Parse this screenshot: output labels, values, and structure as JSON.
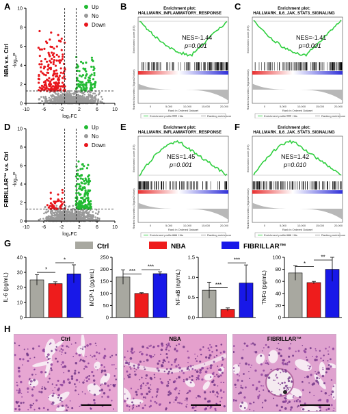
{
  "panels": {
    "A": {
      "label": "A",
      "ylabel_title": "NBA v.s. Ctrl"
    },
    "B": {
      "label": "B"
    },
    "C": {
      "label": "C"
    },
    "D": {
      "label": "D",
      "ylabel_title": "FIBRILLAR™ v.s. Ctrl"
    },
    "E": {
      "label": "E"
    },
    "F": {
      "label": "F"
    },
    "G": {
      "label": "G"
    },
    "H": {
      "label": "H"
    }
  },
  "volcano": {
    "xlabel": "log₂FC",
    "ylabel": "-log₁₀P",
    "xticks": [
      "-10",
      "-6",
      "-2",
      "2",
      "6",
      "10"
    ],
    "yticksA": [
      "0",
      "2",
      "4",
      "6",
      "8",
      "10"
    ],
    "yticksD": [
      "0",
      "2",
      "4",
      "6",
      "8",
      "10"
    ],
    "legend": [
      {
        "label": "Up",
        "color": "#22bb33"
      },
      {
        "label": "No",
        "color": "#999999"
      },
      {
        "label": "Down",
        "color": "#e8161c"
      }
    ]
  },
  "gsea": [
    {
      "id": "B",
      "heading": "Enrichment plot:",
      "title": "HALLMARK_INFLAMMATORY_RESPONSE",
      "nes": "NES=-1.44",
      "p": "p=0.001",
      "direction": "down"
    },
    {
      "id": "C",
      "heading": "Enrichment plot:",
      "title": "HALLMARK_IL6_JAK_STAT3_SIGNALING",
      "nes": "NES=-1.41",
      "p": "p=0.001",
      "direction": "down"
    },
    {
      "id": "E",
      "heading": "Enrichment plot:",
      "title": "HALLMARK_INFLAMMATORY_RESPONSE",
      "nes": "NES=1.45",
      "p": "p=0.001",
      "direction": "up"
    },
    {
      "id": "F",
      "heading": "Enrichment plot:",
      "title": "HALLMARK_IL6_JAK_STAT3_SIGNALING",
      "nes": "NES=1.42",
      "p": "p=0.010",
      "direction": "up"
    }
  ],
  "gsea_axis": {
    "es_label": "Enrichment score (ES)",
    "rank_label": "Ranked list metric (Signal2Noise)",
    "xlabel": "Rank in Ordered Dataset",
    "xticks": [
      "0",
      "5,000",
      "10,000",
      "15,000",
      "20,000"
    ],
    "legend": [
      "Enrichment profile",
      "Hits",
      "Ranking metric scores"
    ]
  },
  "bar_legend": [
    {
      "label": "Ctrl",
      "color": "#a8a8a0"
    },
    {
      "label": "NBA",
      "color": "#ee1c1c"
    },
    {
      "label": "FIBRILLAR™",
      "color": "#1818e8"
    }
  ],
  "chart_data": [
    {
      "type": "bar",
      "ylabel": "IL-6 (pg/mL)",
      "categories": [
        "Ctrl",
        "NBA",
        "FIBRILLAR™"
      ],
      "values": [
        25,
        22.5,
        29
      ],
      "errors": [
        3.5,
        1.2,
        6
      ],
      "ylim": [
        0,
        40
      ],
      "yticks": [
        "0",
        "10",
        "20",
        "30",
        "40"
      ],
      "sig": [
        {
          "from": 0,
          "to": 1,
          "label": "*"
        },
        {
          "from": 1,
          "to": 2,
          "label": "*"
        }
      ]
    },
    {
      "type": "bar",
      "ylabel": "MCP-1 (pg/mL)",
      "categories": [
        "Ctrl",
        "NBA",
        "FIBRILLAR™"
      ],
      "values": [
        168,
        100,
        182
      ],
      "errors": [
        30,
        3,
        8
      ],
      "ylim": [
        0,
        250
      ],
      "yticks": [
        "0",
        "50",
        "100",
        "150",
        "200",
        "250"
      ],
      "sig": [
        {
          "from": 0,
          "to": 1,
          "label": "***"
        },
        {
          "from": 1,
          "to": 2,
          "label": "***"
        }
      ]
    },
    {
      "type": "bar",
      "ylabel": "NF-κB (ng/mL)",
      "categories": [
        "Ctrl",
        "NBA",
        "FIBRILLAR™"
      ],
      "values": [
        0.68,
        0.2,
        0.86
      ],
      "errors": [
        0.2,
        0.04,
        0.45
      ],
      "ylim": [
        0,
        1.5
      ],
      "yticks": [
        "0.0",
        "0.5",
        "1.0",
        "1.5"
      ],
      "sig": [
        {
          "from": 0,
          "to": 1,
          "label": "***"
        },
        {
          "from": 1,
          "to": 2,
          "label": "***"
        }
      ]
    },
    {
      "type": "bar",
      "ylabel": "TNFα (pg/mL)",
      "categories": [
        "Ctrl",
        "NBA",
        "FIBRILLAR™"
      ],
      "values": [
        74,
        58,
        80
      ],
      "errors": [
        12,
        2,
        20
      ],
      "ylim": [
        0,
        100
      ],
      "yticks": [
        "0",
        "20",
        "40",
        "60",
        "80",
        "100"
      ],
      "sig": [
        {
          "from": 0,
          "to": 1,
          "label": "*"
        },
        {
          "from": 1,
          "to": 2,
          "label": "**"
        }
      ]
    }
  ],
  "histology": [
    {
      "title": "Ctrl"
    },
    {
      "title": "NBA"
    },
    {
      "title": "FIBRILLAR™"
    }
  ]
}
